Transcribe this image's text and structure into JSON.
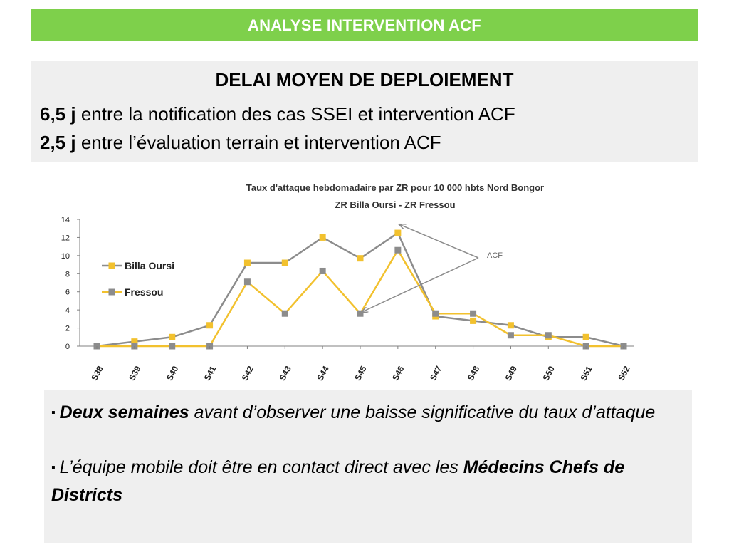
{
  "banner": {
    "title": "ANALYSE INTERVENTION ACF"
  },
  "summary": {
    "title": "DELAI MOYEN DE DEPLOIEMENT",
    "line1": {
      "value": "6,5 j",
      "text": "entre la notification des cas SSEI et intervention ACF"
    },
    "line2": {
      "value": "2,5 j",
      "text": "entre l’évaluation terrain et intervention ACF"
    }
  },
  "chart_data": {
    "type": "line",
    "title": "Taux d'attaque hebdomadaire par ZR pour 10 000  hbts  Nord Bongor",
    "subtitle": "ZR Billa Oursi - ZR Fressou",
    "categories": [
      "S38",
      "S39",
      "S40",
      "S41",
      "S42",
      "S43",
      "S44",
      "S45",
      "S46",
      "S47",
      "S48",
      "S49",
      "S50",
      "S51",
      "S52"
    ],
    "ylim": [
      0,
      14
    ],
    "yticks": [
      0,
      2,
      4,
      6,
      8,
      10,
      12,
      14
    ],
    "legend_position": "left",
    "series": [
      {
        "name": "Billa Oursi",
        "line_color": "#8c8c8c",
        "marker_color": "#f2c12e",
        "values": [
          0,
          0.5,
          1,
          2.3,
          9.2,
          9.2,
          12,
          9.7,
          12.5,
          3.3,
          2.8,
          2.3,
          1,
          1,
          0
        ]
      },
      {
        "name": "Fressou",
        "line_color": "#f2c12e",
        "marker_color": "#8c8c8c",
        "values": [
          0,
          0,
          0,
          0,
          7.1,
          3.6,
          8.3,
          3.6,
          10.6,
          3.6,
          3.6,
          1.2,
          1.2,
          0,
          0
        ]
      }
    ],
    "annotation": {
      "text": "ACF",
      "points_to": [
        "S46",
        "S45"
      ]
    },
    "grid": false
  },
  "notes": {
    "bullet_symbol": "▪",
    "note1": {
      "strong": "Deux semaines",
      "rest": " avant d’observer une baisse significative du taux d’attaque"
    },
    "note2": {
      "lead": "L’équipe mobile  doit être en contact direct avec les ",
      "strong": "Médecins Chefs de Districts"
    }
  }
}
